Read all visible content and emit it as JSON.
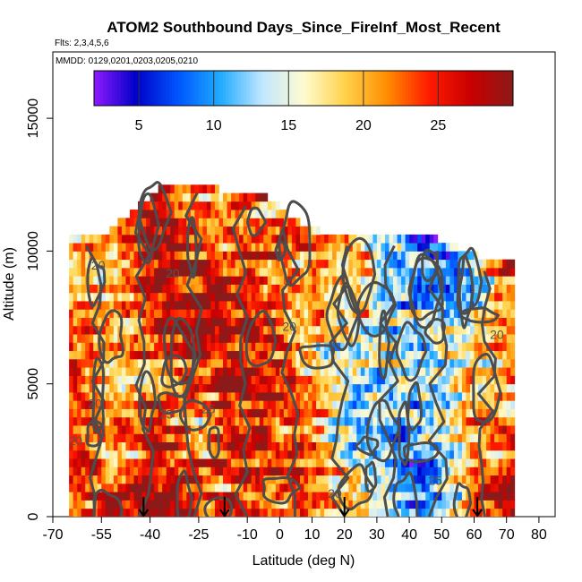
{
  "chart_data": {
    "type": "heatmap",
    "title": "ATOM2 Southbound Days_Since_FireInf_Most_Recent",
    "flights_text": "Flts: 2,3,4,5,6",
    "dates_text": "MMDD: 0129,0201,0203,0205,0210",
    "xlabel": "Latitude (deg N)",
    "ylabel": "Altitude (m)",
    "xlim": [
      -70,
      85
    ],
    "ylim": [
      0,
      17500
    ],
    "x_ticks": [
      -70,
      -55,
      -40,
      -25,
      -10,
      0,
      10,
      20,
      30,
      40,
      50,
      60,
      70,
      80
    ],
    "x_tick_labels": [
      "-70",
      "-55",
      "-40",
      "-25",
      "-10",
      "0",
      "10",
      "20",
      "30",
      "40",
      "50",
      "60",
      "70",
      "80"
    ],
    "y_ticks": [
      0,
      5000,
      10000,
      15000
    ],
    "y_tick_labels": [
      "0",
      "5000",
      "10000",
      "15000"
    ],
    "colorbar": {
      "range": [
        2,
        30
      ],
      "tick_values": [
        5,
        10,
        15,
        20,
        25
      ],
      "tick_labels": [
        "5",
        "10",
        "15",
        "20",
        "25"
      ],
      "colors": [
        "#8f1bff",
        "#0000c8",
        "#0055ff",
        "#1eaaff",
        "#bfe6ff",
        "#fffbd0",
        "#ffd24a",
        "#ff8c00",
        "#ff1a00",
        "#c80000",
        "#8b1a1a"
      ]
    },
    "contour_labels": [
      "20",
      "20",
      "25",
      "20",
      "25",
      "20",
      "20",
      "25",
      "20",
      "20"
    ],
    "arrow_markers_lat": [
      -42,
      -17,
      20,
      61
    ],
    "coverage": {
      "lat_range": [
        -65,
        72
      ],
      "alt_range": [
        0,
        12500
      ]
    },
    "profile": {
      "lat_values": [
        -65,
        -55,
        -45,
        -35,
        -25,
        -15,
        -5,
        5,
        15,
        25,
        35,
        45,
        55,
        65,
        72
      ],
      "top_altitude_m": [
        10500,
        10500,
        11500,
        12500,
        12500,
        12000,
        12000,
        11000,
        10500,
        10500,
        10500,
        10500,
        10000,
        9500,
        9500
      ],
      "typical_days": [
        22,
        20,
        23,
        26,
        24,
        25,
        24,
        22,
        19,
        15,
        12,
        10,
        15,
        20,
        24
      ]
    }
  }
}
